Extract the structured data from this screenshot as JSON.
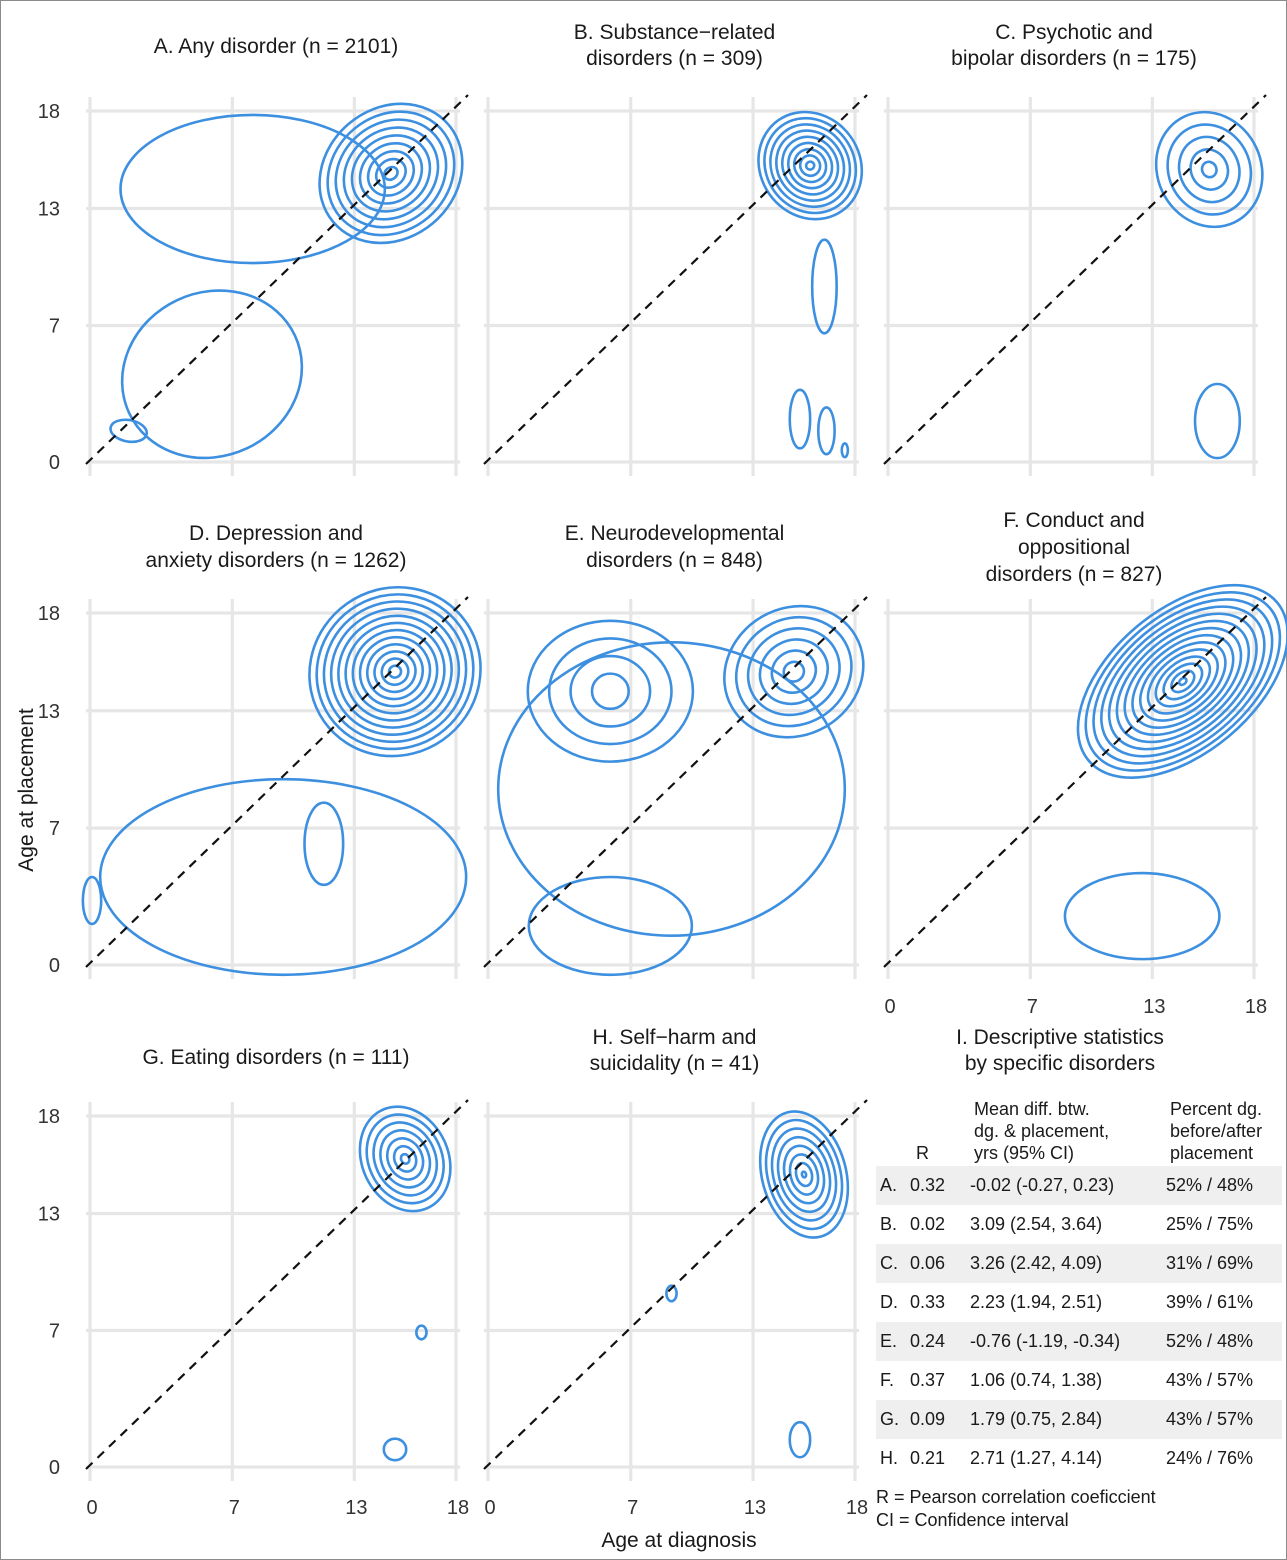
{
  "chart_data": {
    "type": "contour",
    "xlabel": "Age at diagnosis",
    "ylabel": "Age at placement",
    "tick_labels": [
      "0",
      "7",
      "13",
      "18"
    ],
    "xlim": [
      0,
      18
    ],
    "ylim": [
      0,
      18
    ],
    "colors": {
      "contour": "#3d8fe0",
      "diagonal": "#111111",
      "grid": "#e6e6e6"
    },
    "reference_line": "y = x (dashed)",
    "panels": [
      {
        "id": "A",
        "title_lines": [
          "A. Any disorder (n = 2101)"
        ],
        "peaks": [
          [
            14.8,
            14.8
          ]
        ]
      },
      {
        "id": "B",
        "title_lines": [
          "B. Substance−related",
          "disorders (n = 309)"
        ],
        "peaks": [
          [
            15.8,
            15.2
          ]
        ]
      },
      {
        "id": "C",
        "title_lines": [
          "C. Psychotic and",
          "bipolar disorders (n = 175)"
        ],
        "peaks": [
          [
            15.8,
            15.0
          ]
        ]
      },
      {
        "id": "D",
        "title_lines": [
          "D. Depression and",
          "anxiety disorders (n = 1262)"
        ],
        "peaks": [
          [
            15.0,
            15.0
          ]
        ]
      },
      {
        "id": "E",
        "title_lines": [
          "E. Neurodevelopmental",
          "disorders (n = 848)"
        ],
        "peaks": [
          [
            6.0,
            14.0
          ],
          [
            15.0,
            15.0
          ]
        ]
      },
      {
        "id": "F",
        "title_lines": [
          "F. Conduct and",
          "oppositional",
          "disorders (n = 827)"
        ],
        "peaks": [
          [
            14.5,
            14.5
          ]
        ]
      },
      {
        "id": "G",
        "title_lines": [
          "G. Eating disorders (n = 111)"
        ],
        "peaks": [
          [
            15.5,
            15.8
          ]
        ]
      },
      {
        "id": "H",
        "title_lines": [
          "H. Self−harm and",
          "suicidality (n = 41)"
        ],
        "peaks": [
          [
            15.5,
            15.0
          ]
        ]
      }
    ]
  },
  "stats": {
    "title_lines": [
      "I. Descriptive statistics",
      "by specific disorders"
    ],
    "headers": {
      "r": "R",
      "mean_diff": [
        "Mean diff. btw.",
        "dg. & placement,",
        "yrs (95% CI)"
      ],
      "percent": [
        "Percent dg.",
        "before/after",
        "placement"
      ]
    },
    "rows": [
      {
        "id": "A.",
        "r": "0.32",
        "mean_diff": "-0.02 (-0.27, 0.23)",
        "percent": "52% / 48%"
      },
      {
        "id": "B.",
        "r": "0.02",
        "mean_diff": "3.09 (2.54, 3.64)",
        "percent": "25% / 75%"
      },
      {
        "id": "C.",
        "r": "0.06",
        "mean_diff": "3.26 (2.42, 4.09)",
        "percent": "31% / 69%"
      },
      {
        "id": "D.",
        "r": "0.33",
        "mean_diff": "2.23 (1.94, 2.51)",
        "percent": "39% / 61%"
      },
      {
        "id": "E.",
        "r": "0.24",
        "mean_diff": "-0.76 (-1.19, -0.34)",
        "percent": "52% / 48%"
      },
      {
        "id": "F.",
        "r": "0.37",
        "mean_diff": "1.06 (0.74, 1.38)",
        "percent": "43% / 57%"
      },
      {
        "id": "G.",
        "r": "0.09",
        "mean_diff": "1.79 (0.75, 2.84)",
        "percent": "43% / 57%"
      },
      {
        "id": "H.",
        "r": "0.21",
        "mean_diff": "2.71 (1.27, 4.14)",
        "percent": "24% / 76%"
      }
    ],
    "notes": [
      "R = Pearson correlation coeficcient",
      "CI = Confidence interval"
    ]
  }
}
